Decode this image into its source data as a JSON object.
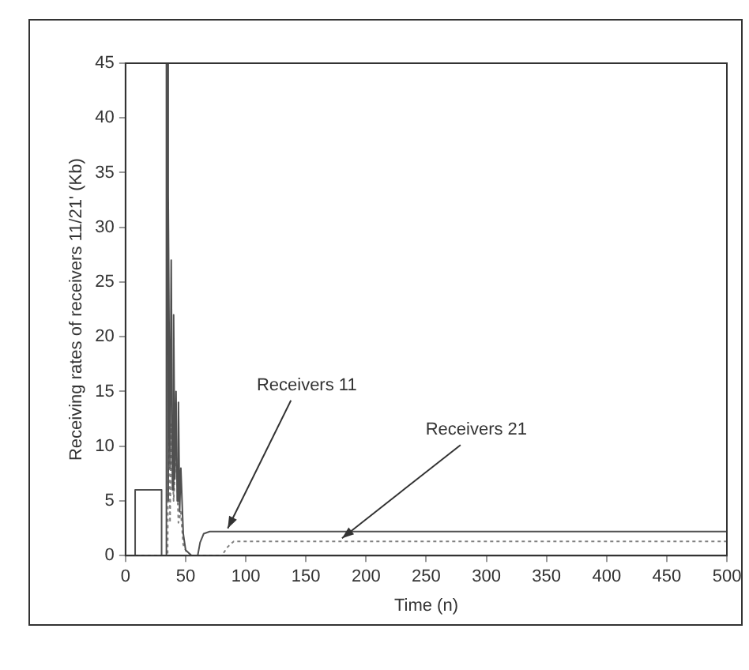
{
  "chart_data": {
    "type": "line",
    "xlabel": "Time (n)",
    "ylabel": "Receiving rates of receivers 11/21' (Kb)",
    "xlim": [
      0,
      500
    ],
    "xticks": [
      0,
      50,
      100,
      150,
      200,
      250,
      300,
      350,
      400,
      450,
      500
    ],
    "ylim": [
      0,
      45
    ],
    "yticks": [
      0,
      5,
      10,
      15,
      20,
      25,
      30,
      35,
      40,
      45
    ],
    "grid": false,
    "legend": false,
    "marker": "none",
    "series": [
      {
        "color": "#505050",
        "line_style": "solid",
        "x": [
          0,
          8,
          8,
          30,
          30,
          34,
          34,
          35,
          35,
          36,
          37,
          38,
          39,
          40,
          41,
          42,
          43,
          44,
          45,
          46,
          48,
          50,
          55,
          60,
          62,
          65,
          70,
          100,
          500
        ],
        "values": [
          0,
          0,
          6,
          6,
          0,
          0,
          45,
          45,
          5,
          33,
          8,
          27,
          6,
          22,
          7,
          15,
          5,
          14,
          4,
          8,
          2,
          0.5,
          0,
          0,
          1.2,
          2,
          2.2,
          2.2,
          2.2
        ]
      },
      {
        "color": "#808080",
        "line_style": "dotted",
        "x": [
          0,
          35,
          36,
          37,
          38,
          40,
          42,
          44,
          46,
          48,
          52,
          80,
          85,
          90,
          120,
          500
        ],
        "values": [
          0,
          0,
          18,
          3,
          12,
          5,
          10,
          3,
          4,
          1,
          0,
          0,
          0.8,
          1.3,
          1.3,
          1.3
        ]
      }
    ],
    "annotations": [
      {
        "text": "Receivers 11",
        "x": 85,
        "y": 2.2
      },
      {
        "text": "Receivers 21",
        "x": 180,
        "y": 1.3
      }
    ]
  }
}
